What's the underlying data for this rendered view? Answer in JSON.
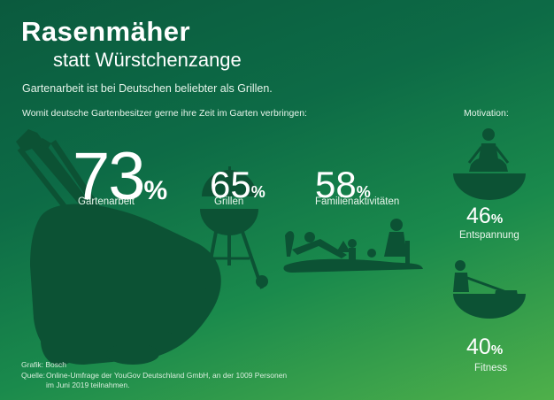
{
  "header": {
    "title": "Rasenmäher",
    "subtitle": "statt Würstchenzange",
    "lead": "Gartenarbeit ist bei Deutschen beliebter als Grillen.",
    "question": "Womit deutsche Gartenbesitzer gerne ihre Zeit im Garten verbringen:",
    "motivation_label": "Motivation:"
  },
  "stats": [
    {
      "value": "73",
      "unit": "%",
      "label": "Gartenarbeit"
    },
    {
      "value": "65",
      "unit": "%",
      "label": "Grillen"
    },
    {
      "value": "58",
      "unit": "%",
      "label": "Familienaktivitäten"
    }
  ],
  "motivation": [
    {
      "value": "46",
      "unit": "%",
      "label": "Entspannung"
    },
    {
      "value": "40",
      "unit": "%",
      "label": "Fitness"
    }
  ],
  "footer": {
    "graphic_label": "Grafik: Bosch",
    "source_label": "Quelle:",
    "source_line1": "Online-Umfrage der YouGov Deutschland GmbH, an der 1009 Personen",
    "source_line2": "im Juni 2019 teilnahmen."
  },
  "colors": {
    "background_dark": "#0b5a3e",
    "background_light": "#4fb04a",
    "silhouette": "#0c5234",
    "text": "#ffffff"
  },
  "icons": [
    "lawnmower-icon",
    "grill-icon",
    "family-garden-icon",
    "meditation-icon",
    "mowing-person-icon"
  ],
  "chart_data": {
    "type": "table",
    "categories": [
      "Gartenarbeit",
      "Grillen",
      "Familienaktivitäten",
      "Entspannung",
      "Fitness"
    ],
    "values": [
      73,
      65,
      58,
      46,
      40
    ],
    "unit": "%",
    "title": "Rasenmäher statt Würstchenzange"
  }
}
